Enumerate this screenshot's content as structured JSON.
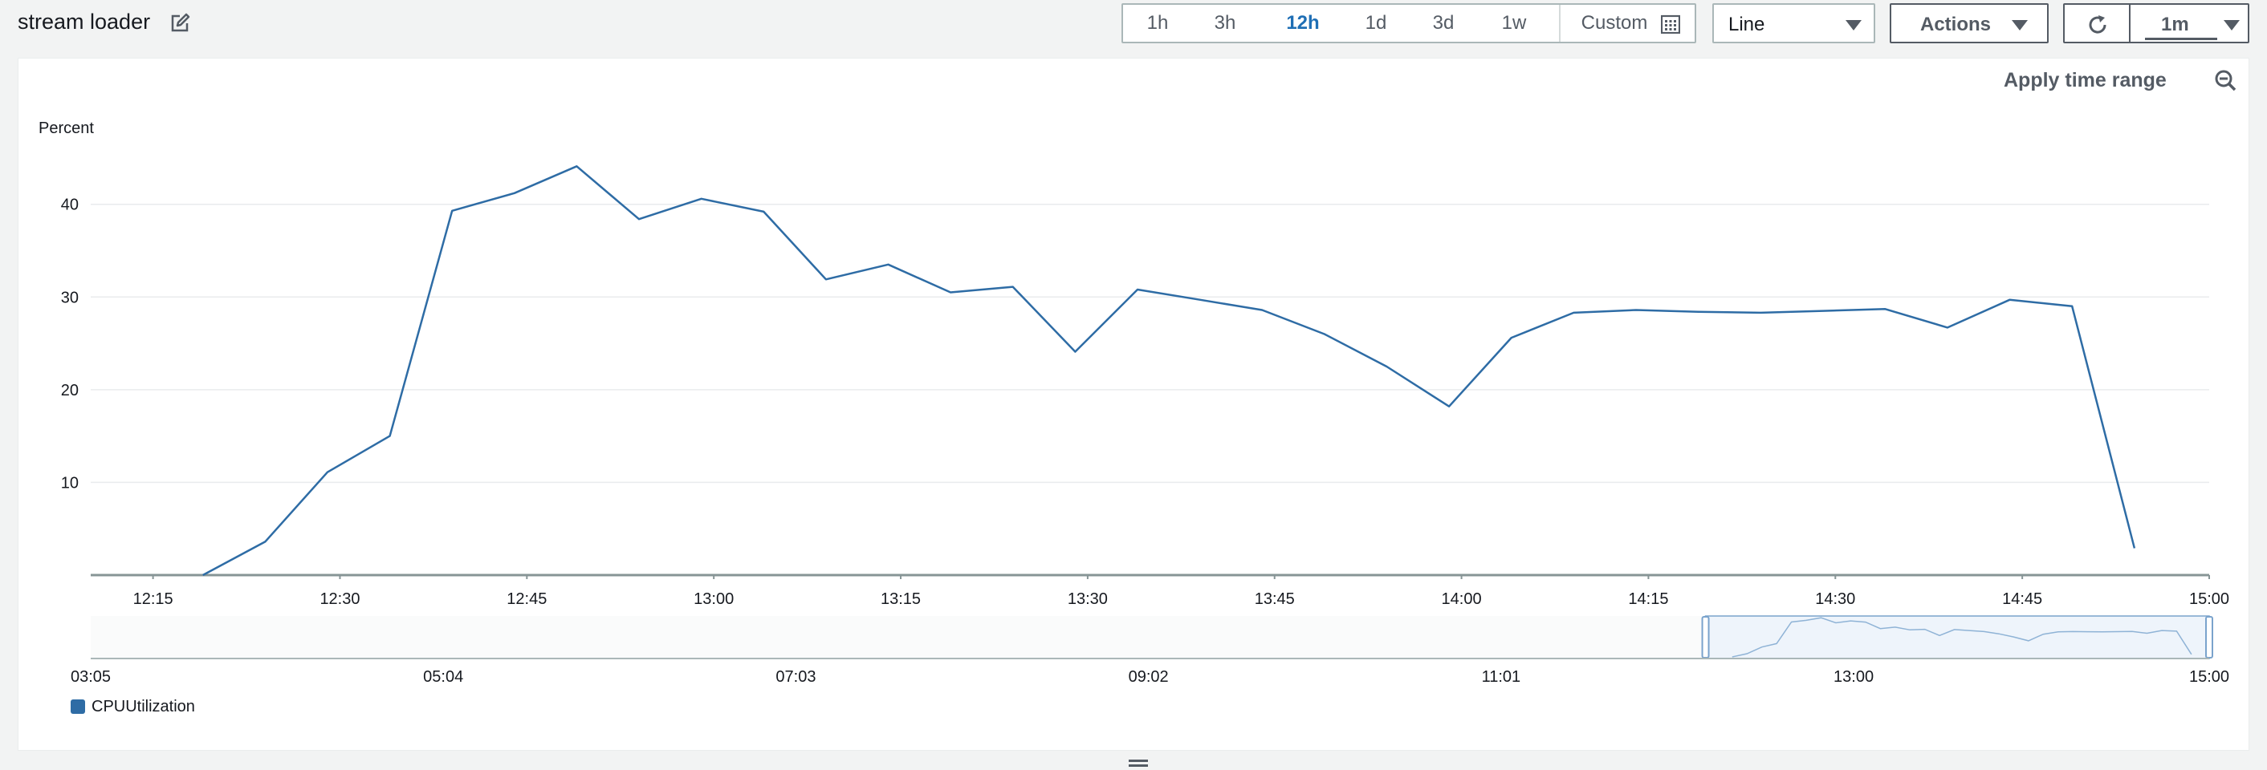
{
  "header": {
    "title": "stream loader",
    "range_options": [
      "1h",
      "3h",
      "12h",
      "1d",
      "3d",
      "1w"
    ],
    "active_range": "12h",
    "custom_label": "Custom",
    "chart_type_selected": "Line",
    "actions_label": "Actions",
    "refresh_interval": "1m"
  },
  "panel": {
    "apply_time_range_label": "Apply time range",
    "legend": [
      {
        "label": "CPUUtilization",
        "color": "#2e6ca5"
      }
    ]
  },
  "colors": {
    "series": "#2e6ca5",
    "active_range": "#1f6fb5",
    "navigator_fill": "#eef4fb",
    "navigator_border": "#7aa3cc"
  },
  "icons": [
    "edit-icon",
    "calendar-icon",
    "caret-down-icon",
    "refresh-icon",
    "zoom-out-icon",
    "resize-handle-icon"
  ],
  "chart_data": [
    {
      "type": "line",
      "ylabel": "Percent",
      "ylim": [
        0,
        44.3
      ],
      "yticks": [
        10,
        20,
        30,
        40
      ],
      "xlim": [
        "12:10",
        "15:00"
      ],
      "xticks": [
        "12:15",
        "12:30",
        "12:45",
        "13:00",
        "13:15",
        "13:30",
        "13:45",
        "14:00",
        "14:15",
        "14:30",
        "14:45",
        "15:00"
      ],
      "grid": true,
      "legend_position": "bottom-left",
      "series": [
        {
          "name": "CPUUtilization",
          "x": [
            "12:19",
            "12:24",
            "12:29",
            "12:34",
            "12:39",
            "12:44",
            "12:49",
            "12:54",
            "12:59",
            "13:04",
            "13:09",
            "13:14",
            "13:19",
            "13:24",
            "13:29",
            "13:34",
            "13:39",
            "13:44",
            "13:49",
            "13:54",
            "13:59",
            "14:04",
            "14:09",
            "14:14",
            "14:19",
            "14:24",
            "14:29",
            "14:34",
            "14:39",
            "14:44",
            "14:49",
            "14:54"
          ],
          "values": [
            0,
            3.6,
            11.1,
            15.0,
            39.3,
            41.2,
            44.1,
            38.4,
            40.6,
            39.2,
            31.9,
            33.5,
            30.5,
            31.1,
            24.1,
            30.8,
            29.7,
            28.6,
            26.0,
            22.5,
            18.2,
            25.6,
            28.3,
            28.6,
            28.4,
            28.3,
            28.5,
            28.7,
            26.7,
            29.7,
            29.0,
            2.9
          ]
        }
      ]
    },
    {
      "type": "area",
      "xticks": [
        "03:05",
        "05:04",
        "07:03",
        "09:02",
        "11:01",
        "13:00",
        "15:00"
      ],
      "xlim": [
        "03:05",
        "15:00"
      ],
      "selected_range": [
        "12:10",
        "15:00"
      ],
      "series": [
        {
          "name": "CPUUtilization",
          "x": [
            "12:19",
            "12:24",
            "12:29",
            "12:34",
            "12:39",
            "12:44",
            "12:49",
            "12:54",
            "12:59",
            "13:04",
            "13:09",
            "13:14",
            "13:19",
            "13:24",
            "13:29",
            "13:34",
            "13:39",
            "13:44",
            "13:49",
            "13:54",
            "13:59",
            "14:04",
            "14:09",
            "14:14",
            "14:19",
            "14:24",
            "14:29",
            "14:34",
            "14:39",
            "14:44",
            "14:49",
            "14:54"
          ],
          "values": [
            0,
            3.6,
            11.1,
            15.0,
            39.3,
            41.2,
            44.1,
            38.4,
            40.6,
            39.2,
            31.9,
            33.5,
            30.5,
            31.1,
            24.1,
            30.8,
            29.7,
            28.6,
            26.0,
            22.5,
            18.2,
            25.6,
            28.3,
            28.6,
            28.4,
            28.3,
            28.5,
            28.7,
            26.7,
            29.7,
            29.0,
            2.9
          ]
        }
      ]
    }
  ]
}
